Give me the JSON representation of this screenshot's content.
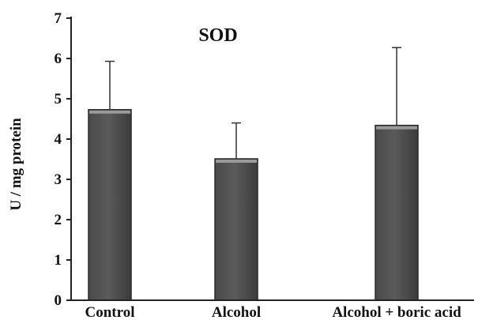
{
  "chart_data": {
    "type": "bar",
    "title": "SOD",
    "xlabel": "",
    "ylabel": "U / mg protein",
    "ylim": [
      0,
      7
    ],
    "yticks": [
      0,
      1,
      2,
      3,
      4,
      5,
      6,
      7
    ],
    "categories": [
      "Control",
      "Alcohol",
      "Alcohol + boric acid"
    ],
    "values": [
      4.73,
      3.51,
      4.34
    ],
    "error_upper": [
      5.93,
      4.4,
      6.27
    ],
    "grid": false,
    "legend": "none",
    "colors": {
      "bar_fill": "#5a5a5a",
      "bar_top": "#9a9a9a",
      "axis": "#222222"
    }
  }
}
